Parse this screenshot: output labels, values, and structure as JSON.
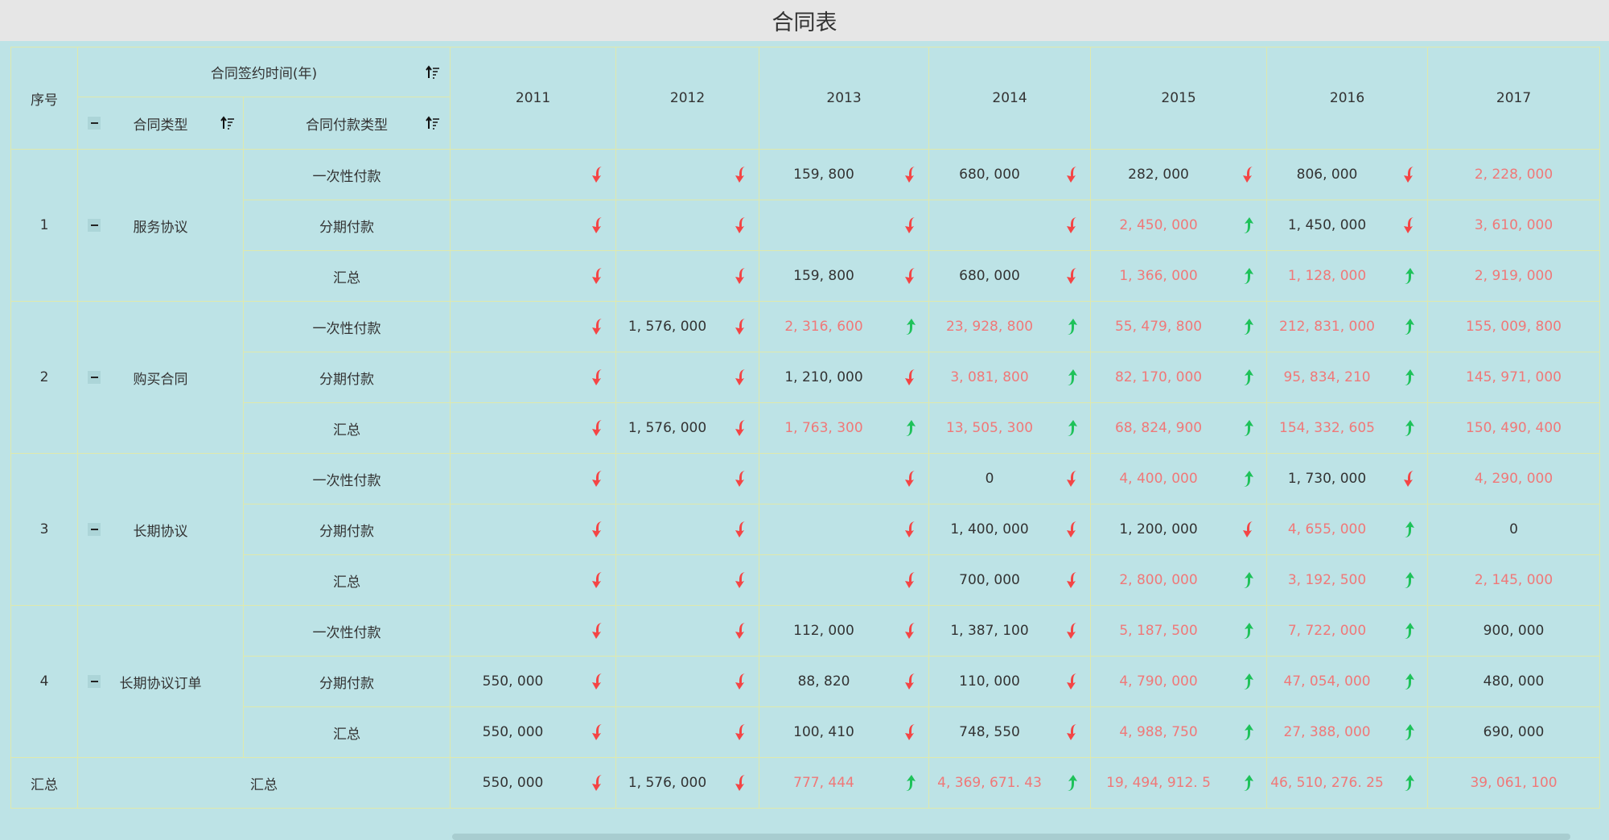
{
  "title": "合同表",
  "header": {
    "index": "序号",
    "time_group": "合同签约时间(年)",
    "contract_type": "合同类型",
    "payment_type": "合同付款类型",
    "years": [
      "2011",
      "2012",
      "2013",
      "2014",
      "2015",
      "2016",
      "2017"
    ]
  },
  "colors": {
    "background": "#bde3e6",
    "border": "#dfe9ad",
    "highlight_text": "#f07878",
    "down_arrow": "#f44545",
    "up_arrow": "#1ec25a"
  },
  "groups": [
    {
      "index": "1",
      "type": "服务协议",
      "rows": [
        {
          "pay": "一次性付款",
          "cells": [
            {
              "v": "",
              "t": "down"
            },
            {
              "v": "",
              "t": "down"
            },
            {
              "v": "159, 800",
              "t": "down"
            },
            {
              "v": "680, 000",
              "t": "down"
            },
            {
              "v": "282, 000",
              "t": "down"
            },
            {
              "v": "806, 000",
              "t": "down"
            },
            {
              "v": "2, 228, 000",
              "hl": true
            }
          ]
        },
        {
          "pay": "分期付款",
          "cells": [
            {
              "v": "",
              "t": "down"
            },
            {
              "v": "",
              "t": "down"
            },
            {
              "v": "",
              "t": "down"
            },
            {
              "v": "",
              "t": "down"
            },
            {
              "v": "2, 450, 000",
              "hl": true,
              "t": "up"
            },
            {
              "v": "1, 450, 000",
              "t": "down"
            },
            {
              "v": "3, 610, 000",
              "hl": true
            }
          ]
        },
        {
          "pay": "汇总",
          "cells": [
            {
              "v": "",
              "t": "down"
            },
            {
              "v": "",
              "t": "down"
            },
            {
              "v": "159, 800",
              "t": "down"
            },
            {
              "v": "680, 000",
              "t": "down"
            },
            {
              "v": "1, 366, 000",
              "hl": true,
              "t": "up"
            },
            {
              "v": "1, 128, 000",
              "hl": true,
              "t": "up"
            },
            {
              "v": "2, 919, 000",
              "hl": true
            }
          ]
        }
      ]
    },
    {
      "index": "2",
      "type": "购买合同",
      "rows": [
        {
          "pay": "一次性付款",
          "cells": [
            {
              "v": "",
              "t": "down"
            },
            {
              "v": "1, 576, 000",
              "t": "down"
            },
            {
              "v": "2, 316, 600",
              "hl": true,
              "t": "up"
            },
            {
              "v": "23, 928, 800",
              "hl": true,
              "t": "up"
            },
            {
              "v": "55, 479, 800",
              "hl": true,
              "t": "up"
            },
            {
              "v": "212, 831, 000",
              "hl": true,
              "t": "up"
            },
            {
              "v": "155, 009, 800",
              "hl": true
            }
          ]
        },
        {
          "pay": "分期付款",
          "cells": [
            {
              "v": "",
              "t": "down"
            },
            {
              "v": "",
              "t": "down"
            },
            {
              "v": "1, 210, 000",
              "t": "down"
            },
            {
              "v": "3, 081, 800",
              "hl": true,
              "t": "up"
            },
            {
              "v": "82, 170, 000",
              "hl": true,
              "t": "up"
            },
            {
              "v": "95, 834, 210",
              "hl": true,
              "t": "up"
            },
            {
              "v": "145, 971, 000",
              "hl": true
            }
          ]
        },
        {
          "pay": "汇总",
          "cells": [
            {
              "v": "",
              "t": "down"
            },
            {
              "v": "1, 576, 000",
              "t": "down"
            },
            {
              "v": "1, 763, 300",
              "hl": true,
              "t": "up"
            },
            {
              "v": "13, 505, 300",
              "hl": true,
              "t": "up"
            },
            {
              "v": "68, 824, 900",
              "hl": true,
              "t": "up"
            },
            {
              "v": "154, 332, 605",
              "hl": true,
              "t": "up"
            },
            {
              "v": "150, 490, 400",
              "hl": true
            }
          ]
        }
      ]
    },
    {
      "index": "3",
      "type": "长期协议",
      "rows": [
        {
          "pay": "一次性付款",
          "cells": [
            {
              "v": "",
              "t": "down"
            },
            {
              "v": "",
              "t": "down"
            },
            {
              "v": "",
              "t": "down"
            },
            {
              "v": "0",
              "t": "down"
            },
            {
              "v": "4, 400, 000",
              "hl": true,
              "t": "up"
            },
            {
              "v": "1, 730, 000",
              "t": "down"
            },
            {
              "v": "4, 290, 000",
              "hl": true
            }
          ]
        },
        {
          "pay": "分期付款",
          "cells": [
            {
              "v": "",
              "t": "down"
            },
            {
              "v": "",
              "t": "down"
            },
            {
              "v": "",
              "t": "down"
            },
            {
              "v": "1, 400, 000",
              "t": "down"
            },
            {
              "v": "1, 200, 000",
              "t": "down"
            },
            {
              "v": "4, 655, 000",
              "hl": true,
              "t": "up"
            },
            {
              "v": "0"
            }
          ]
        },
        {
          "pay": "汇总",
          "cells": [
            {
              "v": "",
              "t": "down"
            },
            {
              "v": "",
              "t": "down"
            },
            {
              "v": "",
              "t": "down"
            },
            {
              "v": "700, 000",
              "t": "down"
            },
            {
              "v": "2, 800, 000",
              "hl": true,
              "t": "up"
            },
            {
              "v": "3, 192, 500",
              "hl": true,
              "t": "up"
            },
            {
              "v": "2, 145, 000",
              "hl": true
            }
          ]
        }
      ]
    },
    {
      "index": "4",
      "type": "长期协议订单",
      "rows": [
        {
          "pay": "一次性付款",
          "cells": [
            {
              "v": "",
              "t": "down"
            },
            {
              "v": "",
              "t": "down"
            },
            {
              "v": "112, 000",
              "t": "down"
            },
            {
              "v": "1, 387, 100",
              "t": "down"
            },
            {
              "v": "5, 187, 500",
              "hl": true,
              "t": "up"
            },
            {
              "v": "7, 722, 000",
              "hl": true,
              "t": "up"
            },
            {
              "v": "900, 000"
            }
          ]
        },
        {
          "pay": "分期付款",
          "cells": [
            {
              "v": "550, 000",
              "t": "down"
            },
            {
              "v": "",
              "t": "down"
            },
            {
              "v": "88, 820",
              "t": "down"
            },
            {
              "v": "110, 000",
              "t": "down"
            },
            {
              "v": "4, 790, 000",
              "hl": true,
              "t": "up"
            },
            {
              "v": "47, 054, 000",
              "hl": true,
              "t": "up"
            },
            {
              "v": "480, 000"
            }
          ]
        },
        {
          "pay": "汇总",
          "cells": [
            {
              "v": "550, 000",
              "t": "down"
            },
            {
              "v": "",
              "t": "down"
            },
            {
              "v": "100, 410",
              "t": "down"
            },
            {
              "v": "748, 550",
              "t": "down"
            },
            {
              "v": "4, 988, 750",
              "hl": true,
              "t": "up"
            },
            {
              "v": "27, 388, 000",
              "hl": true,
              "t": "up"
            },
            {
              "v": "690, 000"
            }
          ]
        }
      ]
    }
  ],
  "total": {
    "index": "汇总",
    "label": "汇总",
    "cells": [
      {
        "v": "550, 000",
        "t": "down"
      },
      {
        "v": "1, 576, 000",
        "t": "down"
      },
      {
        "v": "777, 444",
        "hl": true,
        "t": "up"
      },
      {
        "v": "4, 369, 671. 43",
        "hl": true,
        "t": "up"
      },
      {
        "v": "19, 494, 912. 5",
        "hl": true,
        "t": "up"
      },
      {
        "v": "46, 510, 276. 25",
        "hl": true,
        "t": "up"
      },
      {
        "v": "39, 061, 100",
        "hl": true
      }
    ]
  }
}
